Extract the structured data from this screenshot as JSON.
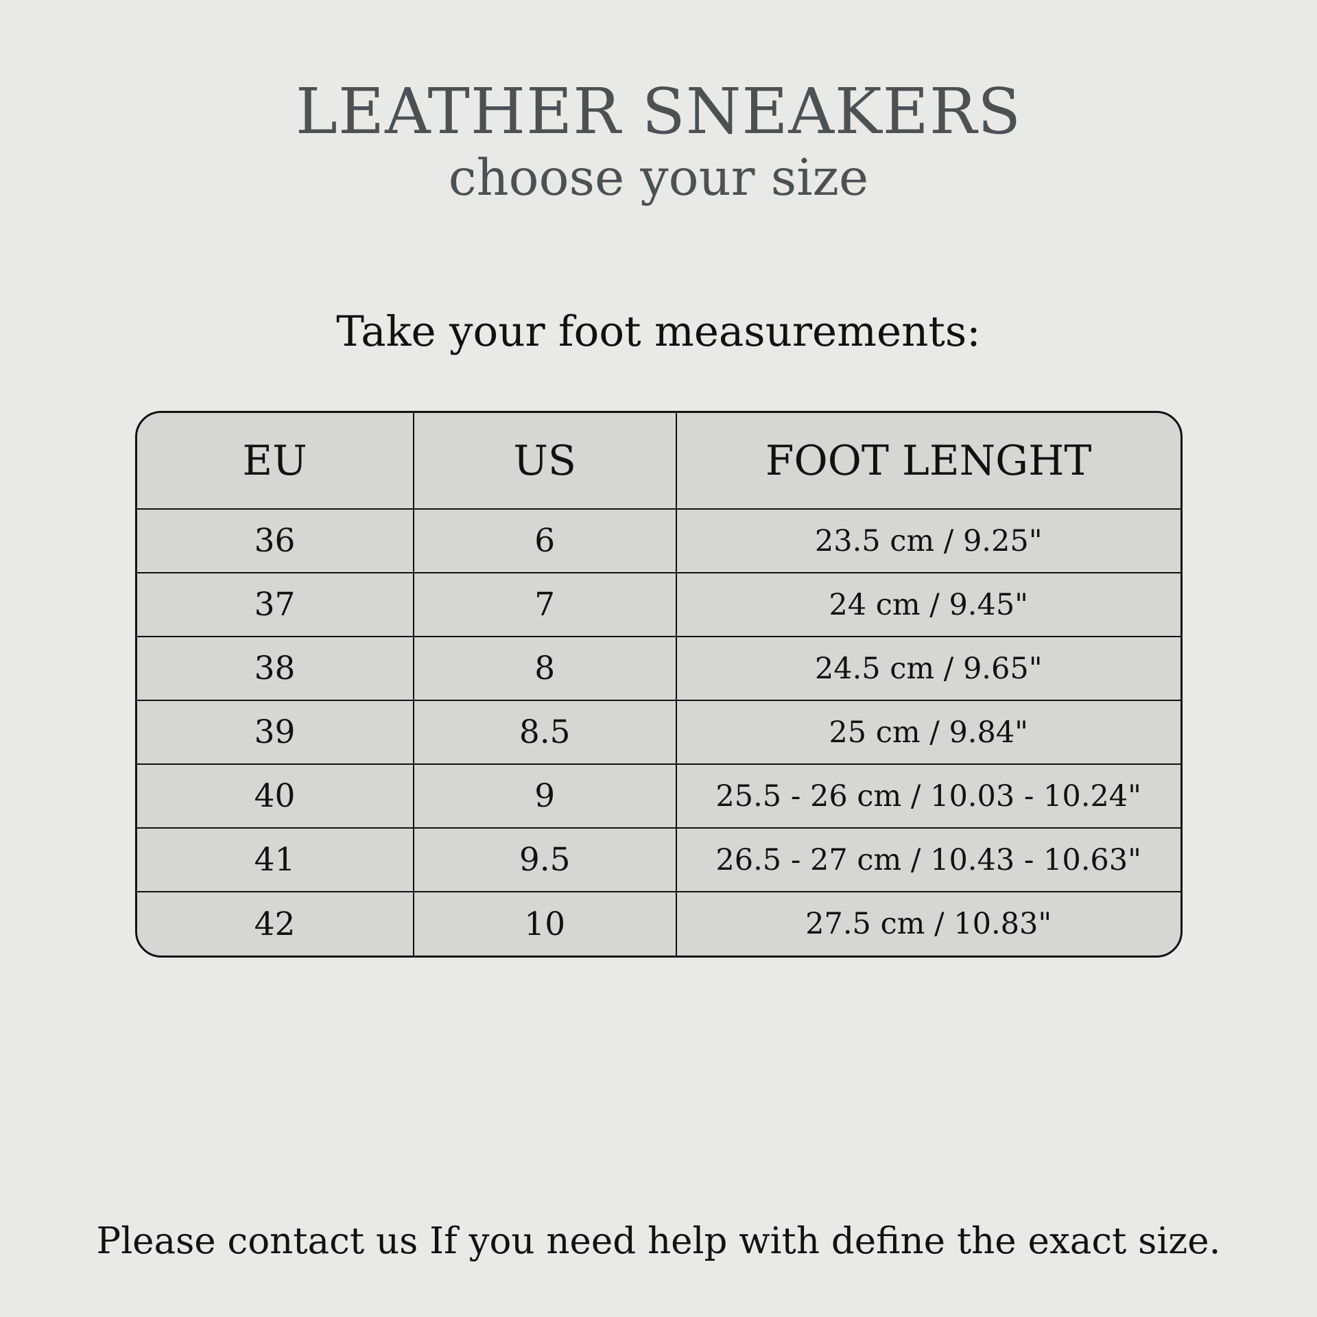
{
  "header": {
    "title": "LEATHER SNEAKERS",
    "subtitle": "choose your size"
  },
  "instruction": "Take your foot measurements:",
  "size_table": {
    "columns": [
      "EU",
      "US",
      "FOOT LENGHT"
    ],
    "rows": [
      [
        "36",
        "6",
        "23.5 cm / 9.25\""
      ],
      [
        "37",
        "7",
        "24 cm / 9.45\""
      ],
      [
        "38",
        "8",
        "24.5 cm / 9.65\""
      ],
      [
        "39",
        "8.5",
        "25 cm / 9.84\""
      ],
      [
        "40",
        "9",
        "25.5 - 26 cm / 10.03 - 10.24\""
      ],
      [
        "41",
        "9.5",
        "26.5 - 27 cm / 10.43 - 10.63\""
      ],
      [
        "42",
        "10",
        "27.5 cm / 10.83\""
      ]
    ]
  },
  "footer": {
    "note": "Please contact us If you need help with define the exact size."
  },
  "colors": {
    "page_background": "#e9e9e8",
    "table_background": "#d6d6d5",
    "title_text": "#4c5153",
    "body_text": "#111111",
    "border": "#111111"
  }
}
